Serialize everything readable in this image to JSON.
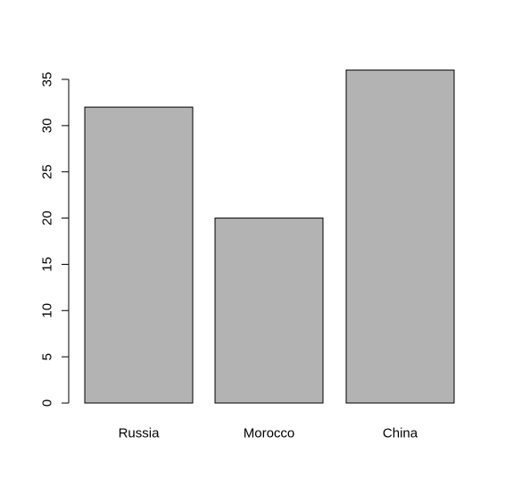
{
  "chart_data": {
    "type": "bar",
    "categories": [
      "Russia",
      "Morocco",
      "China"
    ],
    "values": [
      32,
      20,
      36
    ],
    "title": "",
    "xlabel": "",
    "ylabel": "",
    "ylim": [
      0,
      36
    ],
    "yticks": [
      0,
      5,
      10,
      15,
      20,
      25,
      30,
      35
    ],
    "ytick_labels": [
      "0",
      "5",
      "10",
      "15",
      "20",
      "25",
      "30",
      "35"
    ],
    "grid": false,
    "legend": "none",
    "colors": {
      "bar_fill": "#b3b3b3",
      "bar_stroke": "#000000",
      "axis": "#000000"
    }
  }
}
